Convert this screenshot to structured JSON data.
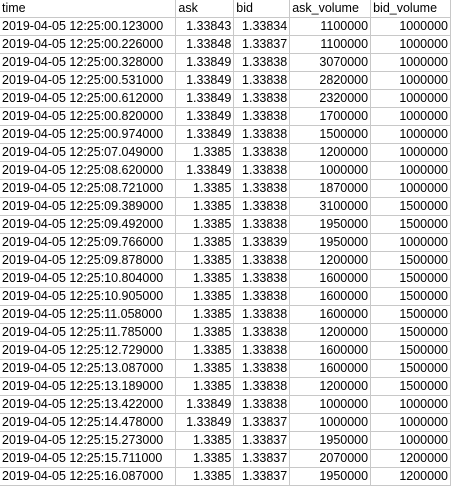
{
  "sheet": {
    "columns": [
      "time",
      "ask",
      "bid",
      "ask_volume",
      "bid_volume"
    ],
    "rows": [
      [
        "2019-04-05 12:25:00.123000",
        "1.33843",
        "1.33834",
        "1100000",
        "1000000"
      ],
      [
        "2019-04-05 12:25:00.226000",
        "1.33848",
        "1.33837",
        "1100000",
        "1000000"
      ],
      [
        "2019-04-05 12:25:00.328000",
        "1.33849",
        "1.33838",
        "3070000",
        "1000000"
      ],
      [
        "2019-04-05 12:25:00.531000",
        "1.33849",
        "1.33838",
        "2820000",
        "1000000"
      ],
      [
        "2019-04-05 12:25:00.612000",
        "1.33849",
        "1.33838",
        "2320000",
        "1000000"
      ],
      [
        "2019-04-05 12:25:00.820000",
        "1.33849",
        "1.33838",
        "1700000",
        "1000000"
      ],
      [
        "2019-04-05 12:25:00.974000",
        "1.33849",
        "1.33838",
        "1500000",
        "1000000"
      ],
      [
        "2019-04-05 12:25:07.049000",
        "1.3385",
        "1.33838",
        "1200000",
        "1000000"
      ],
      [
        "2019-04-05 12:25:08.620000",
        "1.33849",
        "1.33838",
        "1000000",
        "1000000"
      ],
      [
        "2019-04-05 12:25:08.721000",
        "1.3385",
        "1.33838",
        "1870000",
        "1000000"
      ],
      [
        "2019-04-05 12:25:09.389000",
        "1.3385",
        "1.33838",
        "3100000",
        "1500000"
      ],
      [
        "2019-04-05 12:25:09.492000",
        "1.3385",
        "1.33838",
        "1950000",
        "1500000"
      ],
      [
        "2019-04-05 12:25:09.766000",
        "1.3385",
        "1.33839",
        "1950000",
        "1000000"
      ],
      [
        "2019-04-05 12:25:09.878000",
        "1.3385",
        "1.33838",
        "1200000",
        "1500000"
      ],
      [
        "2019-04-05 12:25:10.804000",
        "1.3385",
        "1.33838",
        "1600000",
        "1500000"
      ],
      [
        "2019-04-05 12:25:10.905000",
        "1.3385",
        "1.33838",
        "1600000",
        "1500000"
      ],
      [
        "2019-04-05 12:25:11.058000",
        "1.3385",
        "1.33838",
        "1600000",
        "1500000"
      ],
      [
        "2019-04-05 12:25:11.785000",
        "1.3385",
        "1.33838",
        "1200000",
        "1500000"
      ],
      [
        "2019-04-05 12:25:12.729000",
        "1.3385",
        "1.33838",
        "1600000",
        "1500000"
      ],
      [
        "2019-04-05 12:25:13.087000",
        "1.3385",
        "1.33838",
        "1600000",
        "1500000"
      ],
      [
        "2019-04-05 12:25:13.189000",
        "1.3385",
        "1.33838",
        "1200000",
        "1500000"
      ],
      [
        "2019-04-05 12:25:13.422000",
        "1.33849",
        "1.33838",
        "1000000",
        "1000000"
      ],
      [
        "2019-04-05 12:25:14.478000",
        "1.33849",
        "1.33837",
        "1000000",
        "1000000"
      ],
      [
        "2019-04-05 12:25:15.273000",
        "1.3385",
        "1.33837",
        "1950000",
        "1000000"
      ],
      [
        "2019-04-05 12:25:15.711000",
        "1.3385",
        "1.33837",
        "2070000",
        "1200000"
      ],
      [
        "2019-04-05 12:25:16.087000",
        "1.3385",
        "1.33837",
        "1950000",
        "1200000"
      ]
    ]
  }
}
